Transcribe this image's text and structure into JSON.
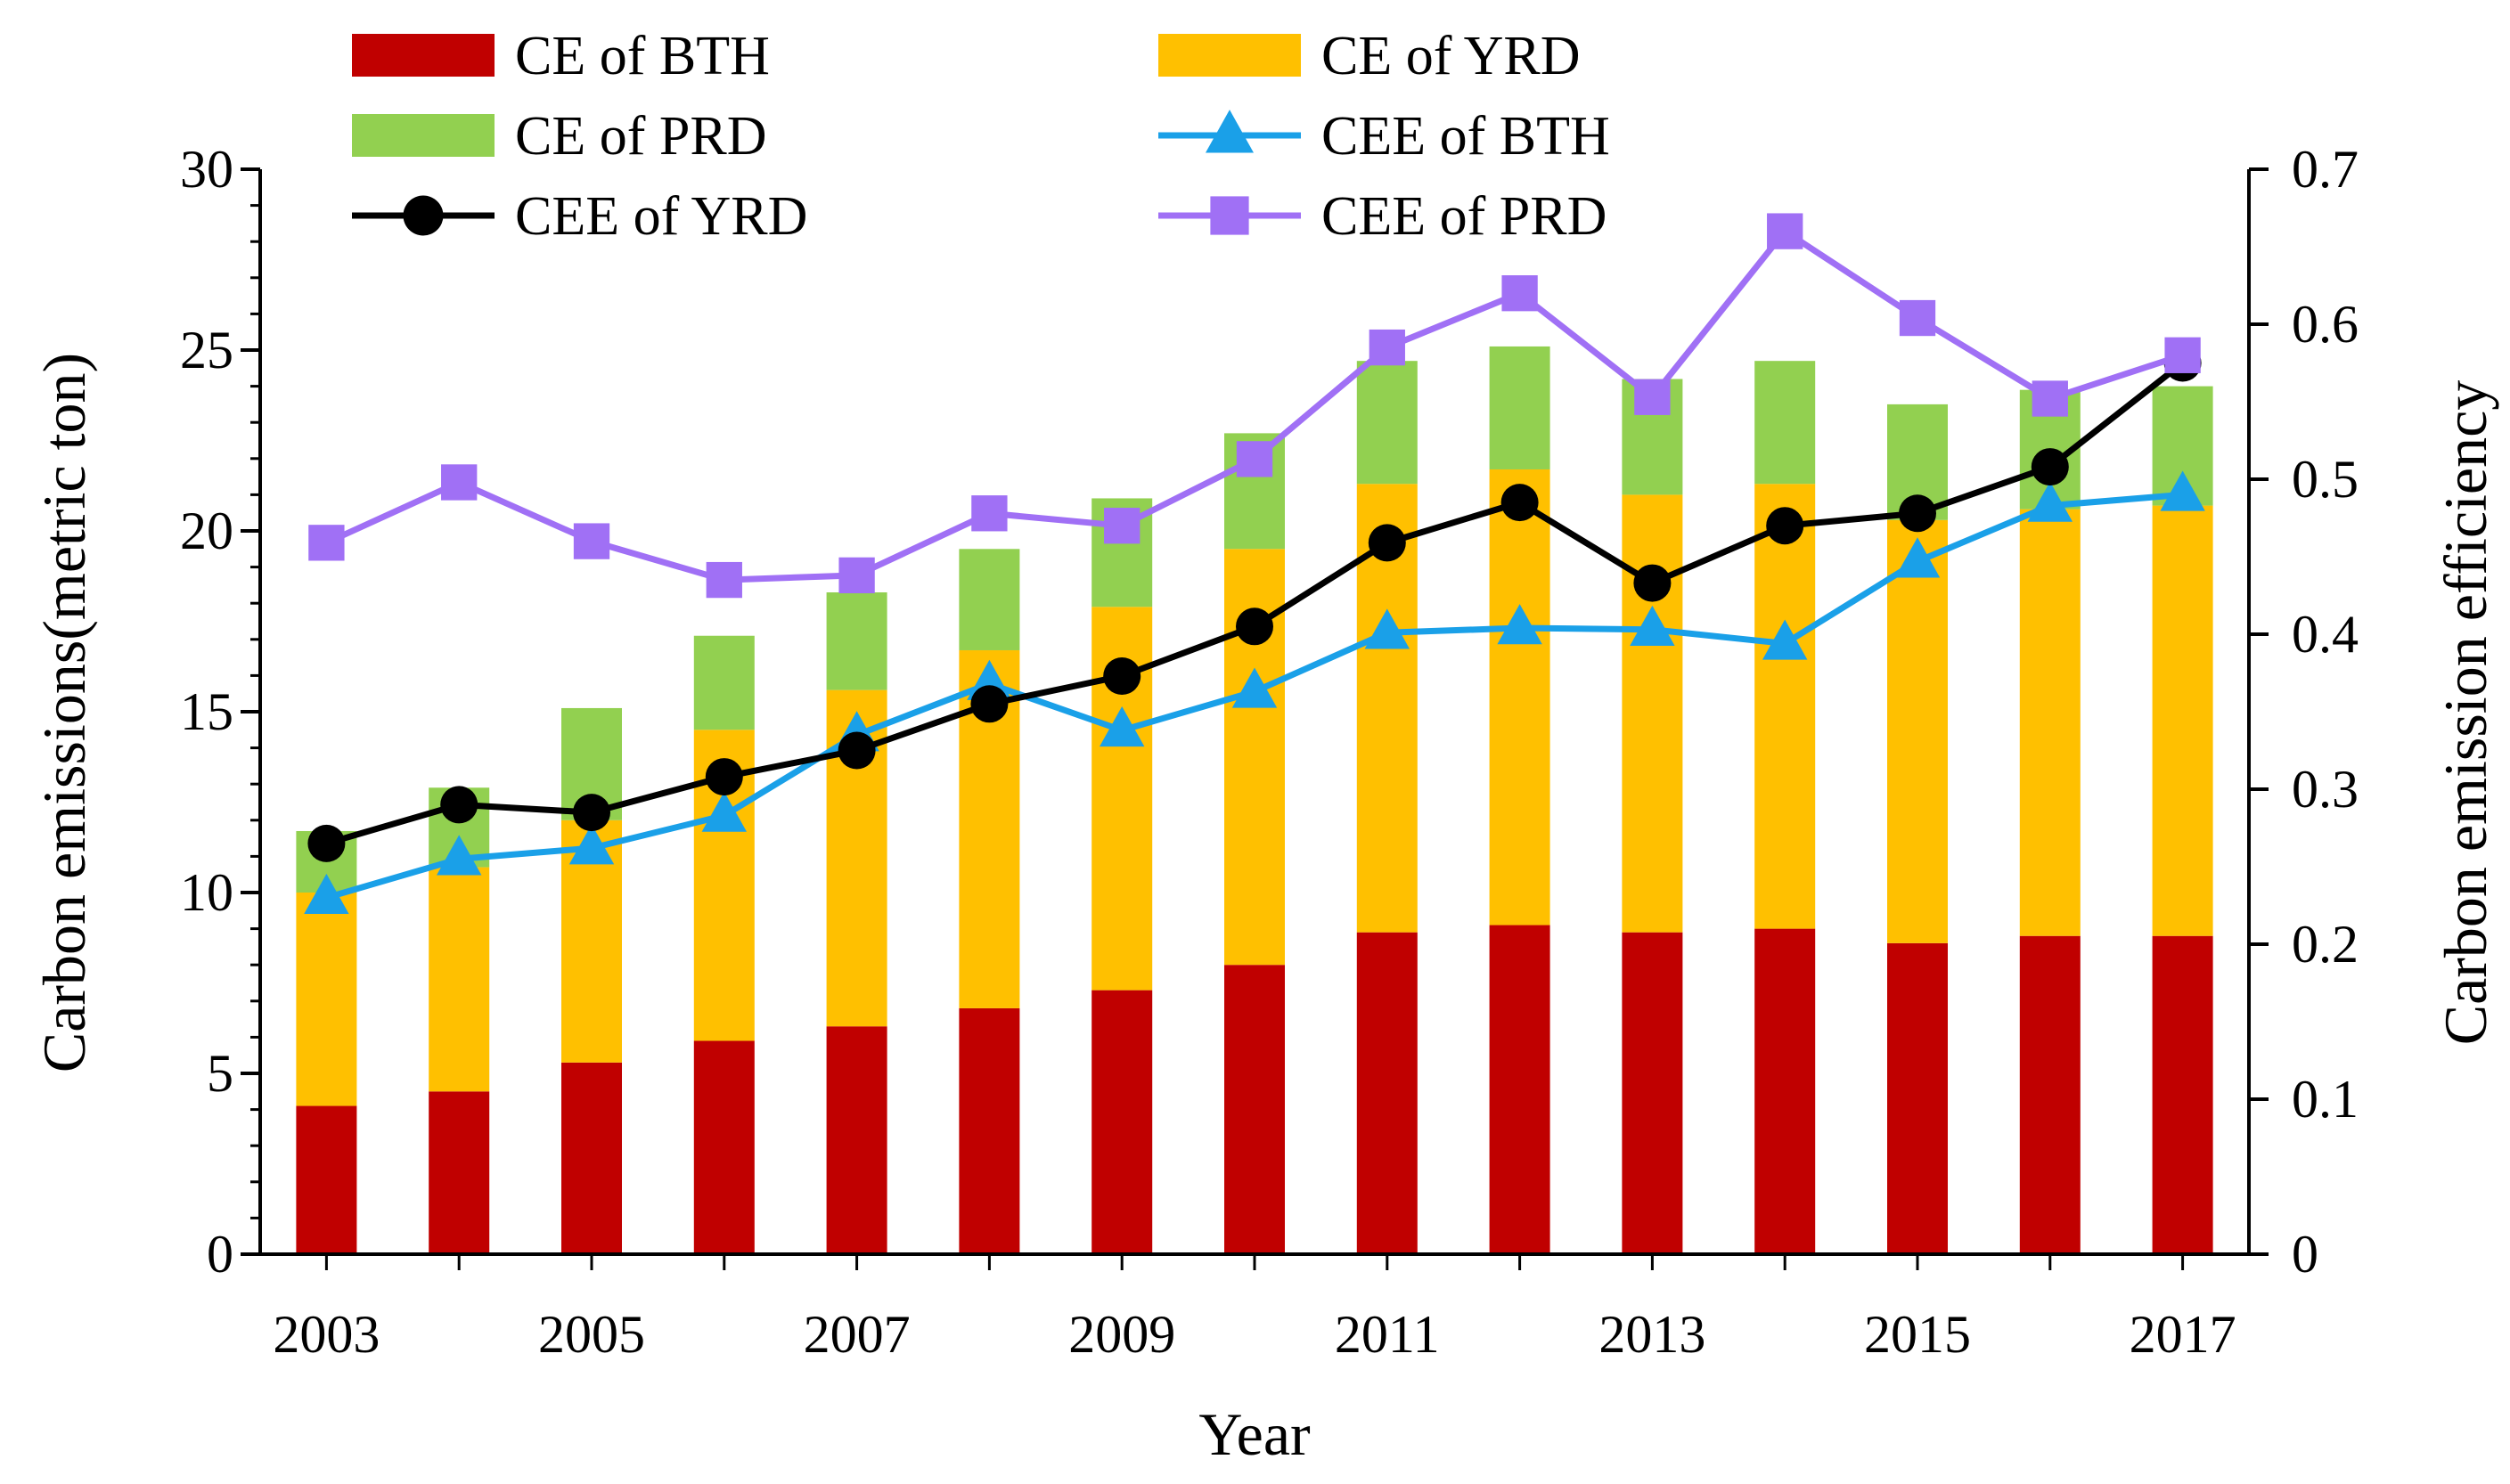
{
  "chart_data": {
    "type": "bar",
    "stacked": true,
    "categories": [
      "2003",
      "2004",
      "2005",
      "2006",
      "2007",
      "2008",
      "2009",
      "2010",
      "2011",
      "2012",
      "2013",
      "2014",
      "2015",
      "2016",
      "2017"
    ],
    "x_tick_labels": [
      "2003",
      "2005",
      "2007",
      "2009",
      "2011",
      "2013",
      "2015",
      "2017"
    ],
    "xlabel": "Year",
    "ylabel_left": "Carbon emissions(metric ton)",
    "ylabel_right": "Carbon emission efficiency",
    "ylim_left": [
      0,
      30
    ],
    "ylim_right": [
      0,
      0.7
    ],
    "yticks_left": [
      "0",
      "5",
      "10",
      "15",
      "20",
      "25",
      "30"
    ],
    "yticks_right": [
      "0",
      "0.1",
      "0.2",
      "0.3",
      "0.4",
      "0.5",
      "0.6",
      "0.7"
    ],
    "bar_series": [
      {
        "name": "CE of BTH",
        "color": "#C00000",
        "values": [
          4.1,
          4.5,
          5.3,
          5.9,
          6.3,
          6.8,
          7.3,
          8.0,
          8.9,
          9.1,
          8.9,
          9.0,
          8.6,
          8.8,
          8.8
        ]
      },
      {
        "name": "CE of YRD",
        "color": "#FFC000",
        "values": [
          5.9,
          6.2,
          6.7,
          8.6,
          9.3,
          9.9,
          10.6,
          11.5,
          12.4,
          12.6,
          12.1,
          12.3,
          11.7,
          11.8,
          11.9
        ]
      },
      {
        "name": "CE of PRD",
        "color": "#92D050",
        "values": [
          1.7,
          2.2,
          3.1,
          2.6,
          2.7,
          2.8,
          3.0,
          3.2,
          3.4,
          3.4,
          3.2,
          3.4,
          3.2,
          3.3,
          3.3
        ]
      }
    ],
    "line_series": [
      {
        "name": "CEE of BTH",
        "color": "#1AA0E8",
        "marker": "triangle",
        "axis": "right",
        "values": [
          0.23,
          0.255,
          0.262,
          0.283,
          0.335,
          0.368,
          0.338,
          0.363,
          0.401,
          0.404,
          0.403,
          0.394,
          0.447,
          0.483,
          0.49
        ]
      },
      {
        "name": "CEE of YRD",
        "color": "#000000",
        "marker": "circle",
        "axis": "right",
        "values": [
          0.265,
          0.29,
          0.285,
          0.308,
          0.325,
          0.355,
          0.373,
          0.405,
          0.459,
          0.485,
          0.433,
          0.47,
          0.478,
          0.508,
          0.575
        ]
      },
      {
        "name": "CEE of PRD",
        "color": "#A070F5",
        "marker": "square",
        "axis": "right",
        "values": [
          0.459,
          0.498,
          0.46,
          0.435,
          0.438,
          0.478,
          0.47,
          0.513,
          0.585,
          0.62,
          0.553,
          0.66,
          0.604,
          0.552,
          0.58
        ]
      }
    ],
    "legend": {
      "placement": "top",
      "columns": 2
    }
  }
}
